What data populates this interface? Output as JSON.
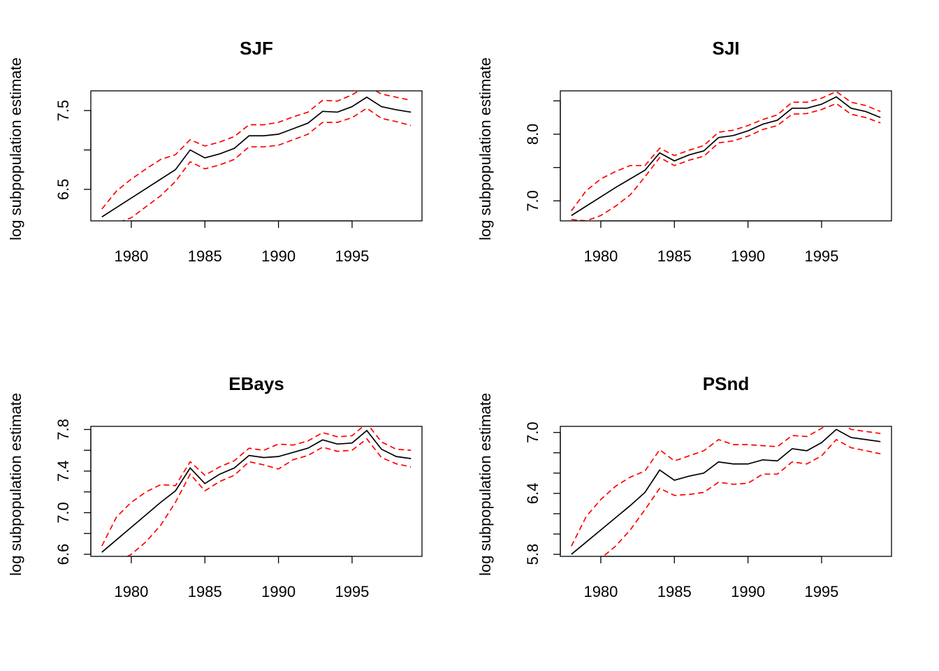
{
  "figure": {
    "colors": {
      "estimate": "#000000",
      "bounds": "#ff0000",
      "axes": "#000000"
    }
  },
  "chart_data": [
    {
      "type": "line",
      "title": "SJF",
      "xlabel": "",
      "ylabel": "log subpopulation estimate",
      "xlim": [
        1977.25,
        1999.75
      ],
      "ylim": [
        6.1,
        7.75
      ],
      "xticks": [
        1980,
        1985,
        1990,
        1995
      ],
      "xtick_labels": [
        "1980",
        "1985",
        "1990",
        "1995"
      ],
      "yticks": [
        6.5,
        7.0,
        7.5
      ],
      "ytick_labels": [
        "6.5",
        "",
        "7.5"
      ],
      "x": [
        1978,
        1979,
        1980,
        1981,
        1982,
        1983,
        1984,
        1985,
        1986,
        1987,
        1988,
        1989,
        1990,
        1991,
        1992,
        1993,
        1994,
        1995,
        1996,
        1997,
        1998,
        1999
      ],
      "series": [
        {
          "role": "estimate",
          "style": "solid",
          "values": [
            6.15,
            6.27,
            6.39,
            6.51,
            6.63,
            6.75,
            7.0,
            6.9,
            6.95,
            7.02,
            7.18,
            7.18,
            7.2,
            7.27,
            7.34,
            7.49,
            7.48,
            7.55,
            7.67,
            7.55,
            7.51,
            7.48
          ]
        },
        {
          "role": "upper",
          "style": "dashed",
          "values": [
            6.25,
            6.48,
            6.63,
            6.76,
            6.88,
            6.94,
            7.13,
            7.05,
            7.1,
            7.17,
            7.32,
            7.32,
            7.35,
            7.42,
            7.48,
            7.63,
            7.62,
            7.7,
            7.81,
            7.71,
            7.67,
            7.63
          ]
        },
        {
          "role": "lower",
          "style": "dashed",
          "values": [
            6.02,
            6.07,
            6.14,
            6.28,
            6.42,
            6.6,
            6.85,
            6.76,
            6.81,
            6.88,
            7.04,
            7.04,
            7.06,
            7.13,
            7.2,
            7.35,
            7.35,
            7.41,
            7.53,
            7.4,
            7.36,
            7.31
          ]
        }
      ]
    },
    {
      "type": "line",
      "title": "SJI",
      "xlabel": "",
      "ylabel": "log subpopulation estimate",
      "xlim": [
        1977.25,
        1999.75
      ],
      "ylim": [
        6.7,
        8.65
      ],
      "xticks": [
        1980,
        1985,
        1990,
        1995
      ],
      "xtick_labels": [
        "1980",
        "1985",
        "1990",
        "1995"
      ],
      "yticks": [
        7.0,
        7.5,
        8.0,
        8.5
      ],
      "ytick_labels": [
        "7.0",
        "",
        "8.0",
        ""
      ],
      "x": [
        1978,
        1979,
        1980,
        1981,
        1982,
        1983,
        1984,
        1985,
        1986,
        1987,
        1988,
        1989,
        1990,
        1991,
        1992,
        1993,
        1994,
        1995,
        1996,
        1997,
        1998,
        1999
      ],
      "series": [
        {
          "role": "estimate",
          "style": "solid",
          "values": [
            6.78,
            6.92,
            7.06,
            7.2,
            7.33,
            7.46,
            7.72,
            7.6,
            7.69,
            7.75,
            7.95,
            7.98,
            8.05,
            8.15,
            8.21,
            8.39,
            8.39,
            8.45,
            8.56,
            8.39,
            8.34,
            8.25
          ]
        },
        {
          "role": "upper",
          "style": "dashed",
          "values": [
            6.85,
            7.15,
            7.33,
            7.44,
            7.53,
            7.53,
            7.79,
            7.68,
            7.76,
            7.83,
            8.03,
            8.06,
            8.13,
            8.22,
            8.29,
            8.48,
            8.48,
            8.54,
            8.64,
            8.48,
            8.43,
            8.34
          ]
        },
        {
          "role": "lower",
          "style": "dashed",
          "values": [
            6.72,
            6.7,
            6.78,
            6.92,
            7.09,
            7.36,
            7.65,
            7.53,
            7.61,
            7.67,
            7.87,
            7.9,
            7.97,
            8.07,
            8.13,
            8.3,
            8.31,
            8.37,
            8.46,
            8.3,
            8.25,
            8.17
          ]
        }
      ]
    },
    {
      "type": "line",
      "title": "EBays",
      "xlabel": "",
      "ylabel": "log subpopulation estimate",
      "xlim": [
        1977.25,
        1999.75
      ],
      "ylim": [
        6.58,
        7.83
      ],
      "xticks": [
        1980,
        1985,
        1990,
        1995
      ],
      "xtick_labels": [
        "1980",
        "1985",
        "1990",
        "1995"
      ],
      "yticks": [
        6.6,
        6.8,
        7.0,
        7.2,
        7.4,
        7.6,
        7.8
      ],
      "ytick_labels": [
        "6.6",
        "",
        "7.0",
        "",
        "7.4",
        "",
        "7.8"
      ],
      "x": [
        1978,
        1979,
        1980,
        1981,
        1982,
        1983,
        1984,
        1985,
        1986,
        1987,
        1988,
        1989,
        1990,
        1991,
        1992,
        1993,
        1994,
        1995,
        1996,
        1997,
        1998,
        1999
      ],
      "series": [
        {
          "role": "estimate",
          "style": "solid",
          "values": [
            6.62,
            6.74,
            6.86,
            6.98,
            7.1,
            7.21,
            7.43,
            7.28,
            7.37,
            7.43,
            7.55,
            7.53,
            7.54,
            7.58,
            7.62,
            7.7,
            7.66,
            7.67,
            7.79,
            7.61,
            7.54,
            7.52
          ]
        },
        {
          "role": "upper",
          "style": "dashed",
          "values": [
            6.68,
            6.96,
            7.1,
            7.2,
            7.27,
            7.26,
            7.49,
            7.36,
            7.44,
            7.5,
            7.62,
            7.6,
            7.66,
            7.65,
            7.69,
            7.77,
            7.73,
            7.74,
            7.86,
            7.68,
            7.61,
            7.6
          ]
        },
        {
          "role": "lower",
          "style": "dashed",
          "values": [
            6.55,
            6.52,
            6.6,
            6.72,
            6.88,
            7.1,
            7.37,
            7.21,
            7.3,
            7.36,
            7.49,
            7.46,
            7.42,
            7.51,
            7.55,
            7.63,
            7.59,
            7.6,
            7.71,
            7.53,
            7.47,
            7.44
          ]
        }
      ]
    },
    {
      "type": "line",
      "title": "PSnd",
      "xlabel": "",
      "ylabel": "log subpopulation estimate",
      "xlim": [
        1977.25,
        1999.75
      ],
      "ylim": [
        5.78,
        7.06
      ],
      "xticks": [
        1980,
        1985,
        1990,
        1995
      ],
      "xtick_labels": [
        "1980",
        "1985",
        "1990",
        "1995"
      ],
      "yticks": [
        5.8,
        6.0,
        6.2,
        6.4,
        6.6,
        6.8,
        7.0
      ],
      "ytick_labels": [
        "5.8",
        "",
        "",
        "6.4",
        "",
        "",
        "7.0"
      ],
      "x": [
        1978,
        1979,
        1980,
        1981,
        1982,
        1983,
        1984,
        1985,
        1986,
        1987,
        1988,
        1989,
        1990,
        1991,
        1992,
        1993,
        1994,
        1995,
        1996,
        1997,
        1998,
        1999
      ],
      "series": [
        {
          "role": "estimate",
          "style": "solid",
          "values": [
            5.8,
            5.92,
            6.04,
            6.16,
            6.28,
            6.41,
            6.63,
            6.53,
            6.57,
            6.6,
            6.71,
            6.69,
            6.69,
            6.73,
            6.72,
            6.84,
            6.82,
            6.9,
            7.03,
            6.95,
            6.93,
            6.91
          ]
        },
        {
          "role": "upper",
          "style": "dashed",
          "values": [
            5.88,
            6.17,
            6.34,
            6.47,
            6.56,
            6.62,
            6.83,
            6.72,
            6.77,
            6.82,
            6.93,
            6.88,
            6.88,
            6.87,
            6.86,
            6.97,
            6.96,
            7.04,
            7.13,
            7.03,
            7.01,
            6.99
          ]
        },
        {
          "role": "lower",
          "style": "dashed",
          "values": [
            5.72,
            5.69,
            5.76,
            5.88,
            6.04,
            6.24,
            6.45,
            6.38,
            6.39,
            6.41,
            6.51,
            6.49,
            6.5,
            6.59,
            6.59,
            6.71,
            6.69,
            6.77,
            6.93,
            6.85,
            6.82,
            6.79
          ]
        }
      ]
    }
  ]
}
